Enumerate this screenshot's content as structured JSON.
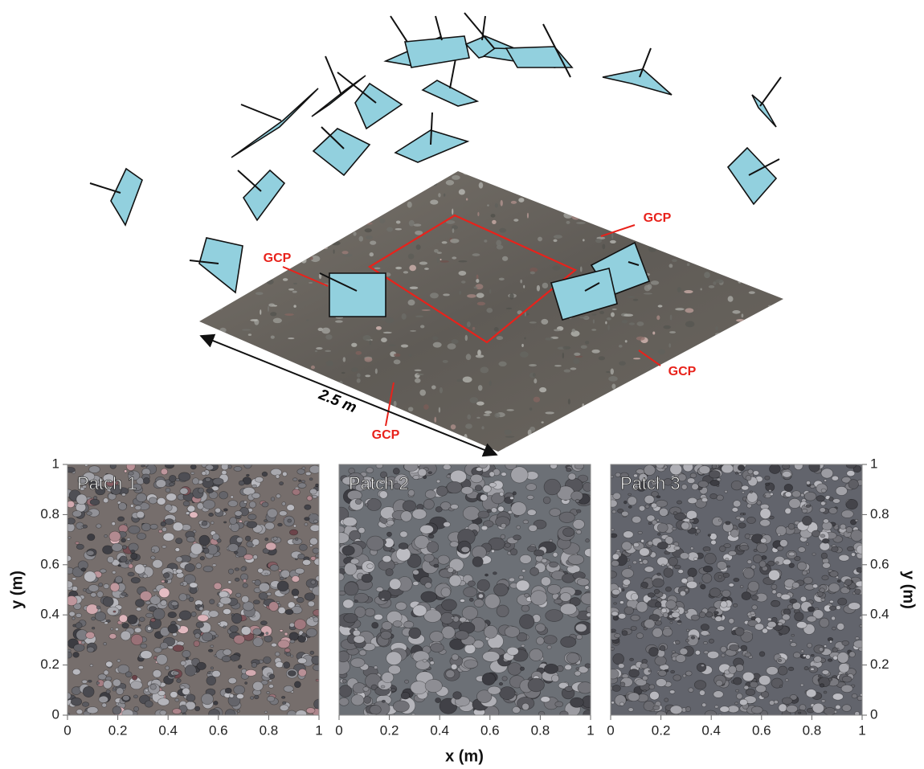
{
  "figure": {
    "annotations": {
      "gcp": [
        "GCP",
        "GCP",
        "GCP",
        "GCP"
      ],
      "scale": "2.5 m"
    },
    "patches": [
      {
        "title": "Patch 1"
      },
      {
        "title": "Patch 2"
      },
      {
        "title": "Patch 3"
      }
    ],
    "x_label": "x (m)",
    "y_label": "y (m)",
    "ticks": [
      0,
      0.2,
      0.4,
      0.6,
      0.8,
      1
    ]
  }
}
